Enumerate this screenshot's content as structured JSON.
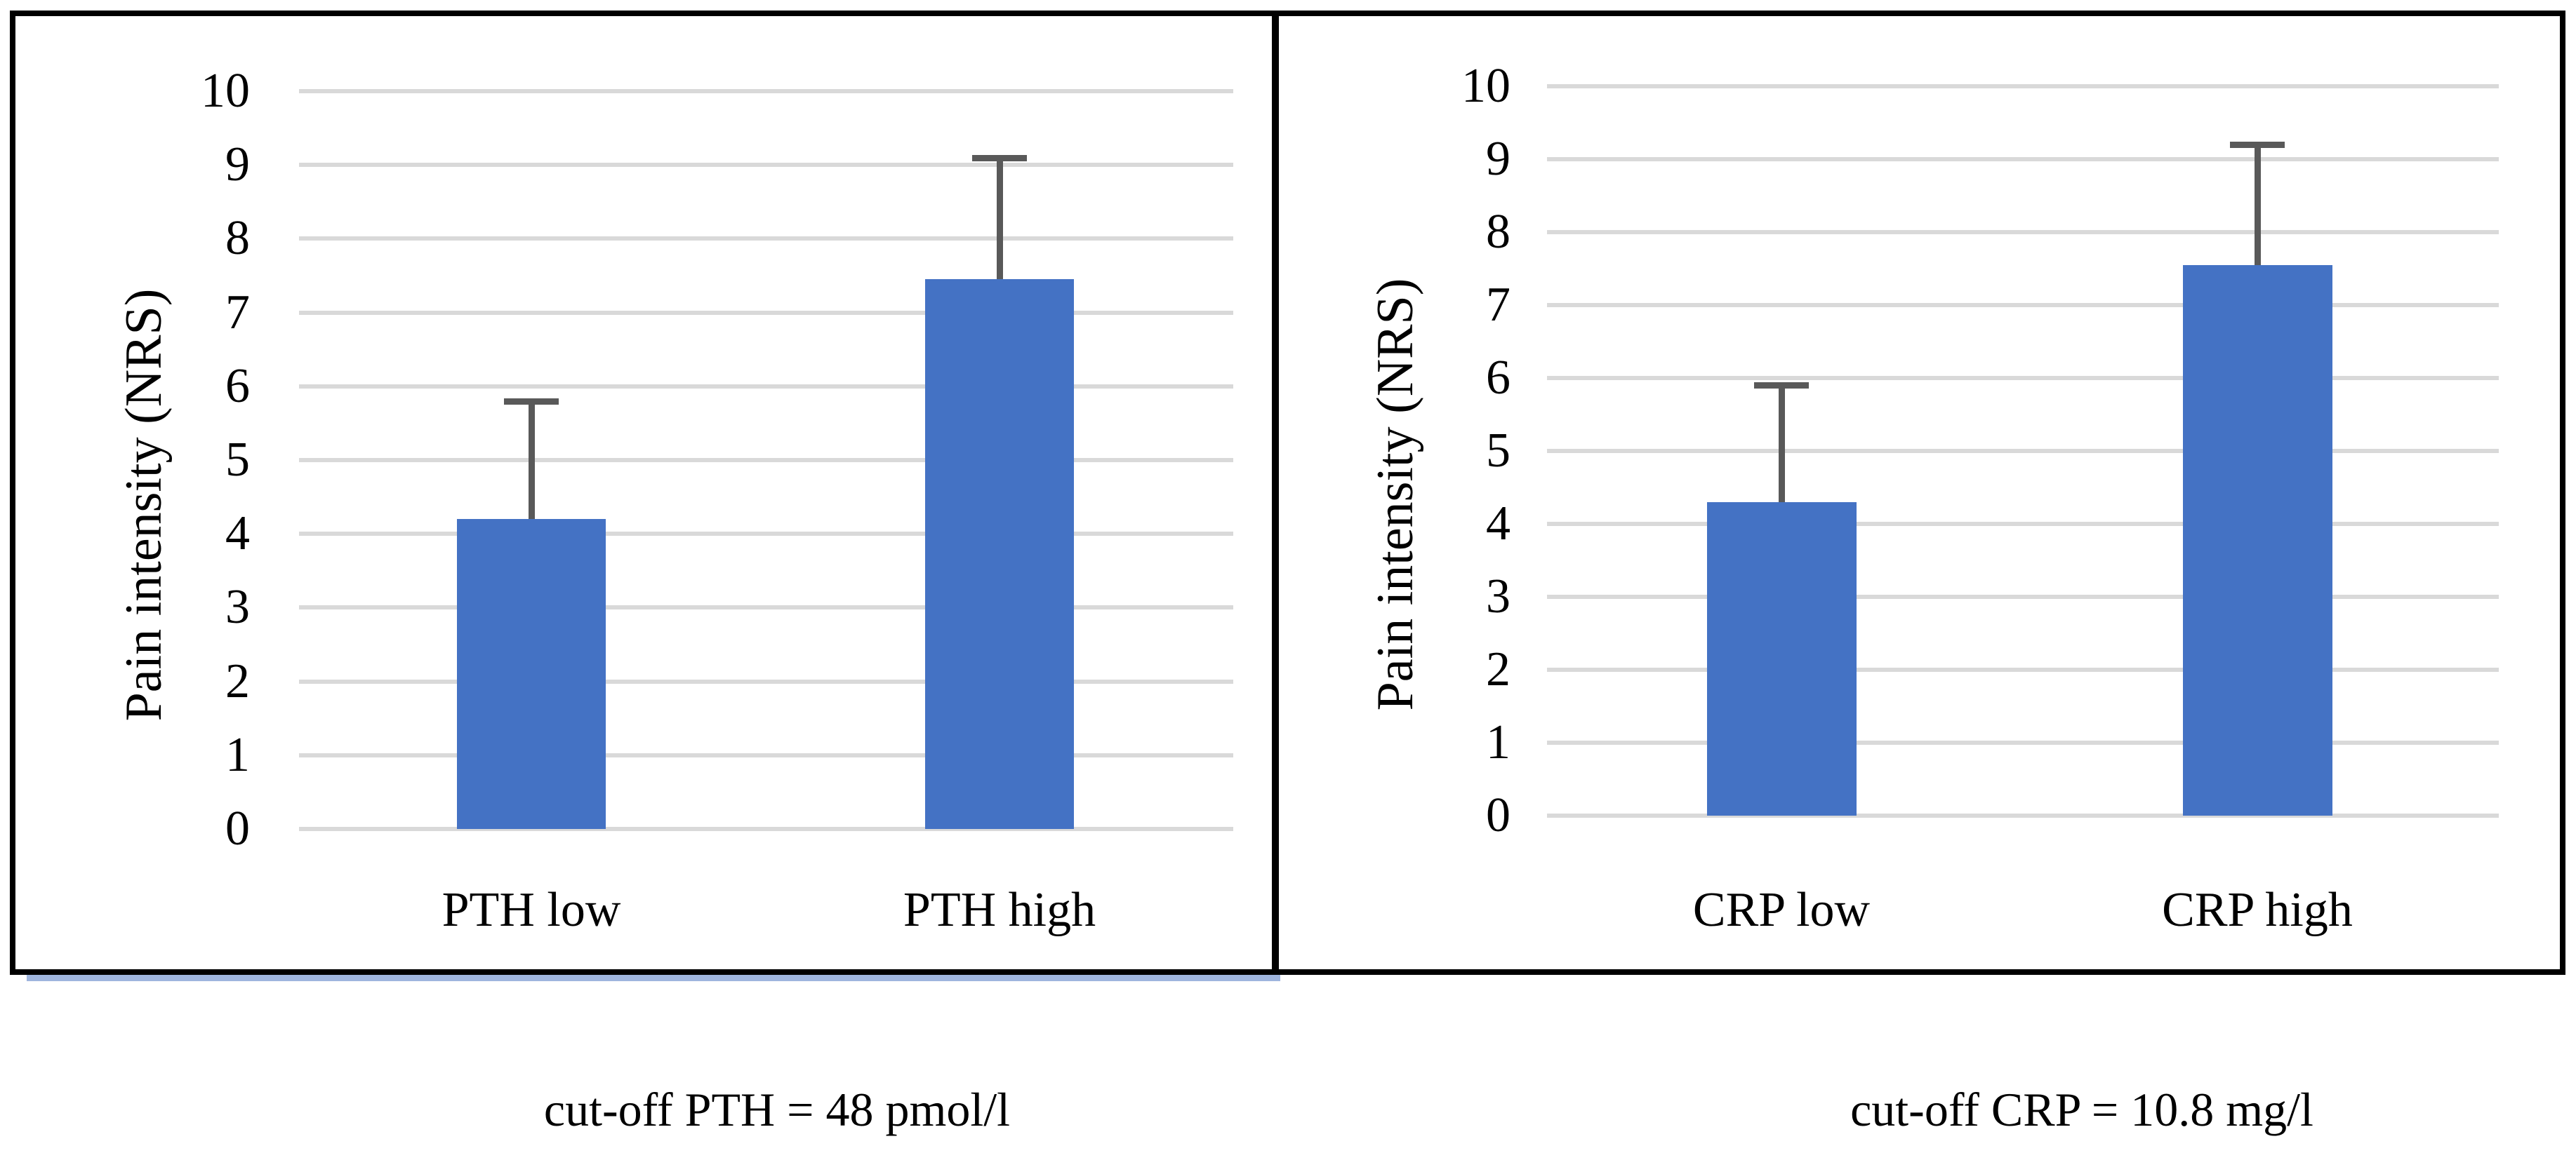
{
  "figure": {
    "description": "Two-panel bar figure: mean pain intensity (NRS) by PTH group and by CRP group, with upper error bars",
    "colors": {
      "bar": "#4472C4",
      "error_bar": "#595959",
      "gridline": "#D9D9D9",
      "panel_border": "#000000",
      "left_panel_underline_artifact": "#9FB5DE",
      "background": "#FFFFFF"
    }
  },
  "chart_data": [
    {
      "type": "bar",
      "title": "",
      "xlabel": "",
      "ylabel": "Pain intensity (NRS)",
      "categories": [
        "PTH low",
        "PTH high"
      ],
      "values": [
        4.2,
        7.45
      ],
      "error_plus": [
        1.6,
        1.65
      ],
      "ylim": [
        0,
        10
      ],
      "yticks": [
        "0",
        "1",
        "2",
        "3",
        "4",
        "5",
        "6",
        "7",
        "8",
        "9",
        "10"
      ],
      "grid": "horizontal",
      "legend": "none",
      "caption": "cut-off PTH = 48 pmol/l"
    },
    {
      "type": "bar",
      "title": "",
      "xlabel": "",
      "ylabel": "Pain intensity (NRS)",
      "categories": [
        "CRP low",
        "CRP high"
      ],
      "values": [
        4.3,
        7.55
      ],
      "error_plus": [
        1.6,
        1.65
      ],
      "ylim": [
        0,
        10
      ],
      "yticks": [
        "0",
        "1",
        "2",
        "3",
        "4",
        "5",
        "6",
        "7",
        "8",
        "9",
        "10"
      ],
      "grid": "horizontal",
      "legend": "none",
      "caption": "cut-off CRP = 10.8 mg/l"
    }
  ]
}
